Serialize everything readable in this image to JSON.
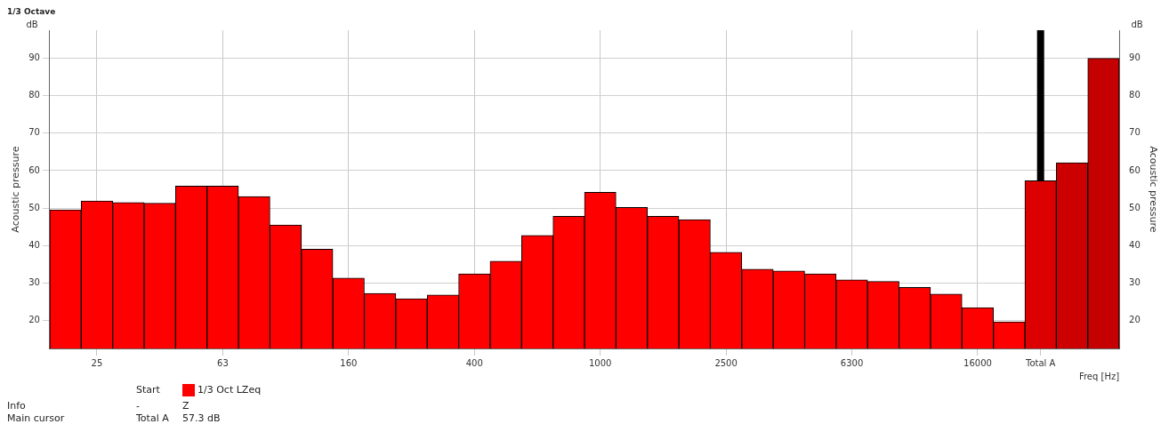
{
  "chart_data": {
    "type": "bar",
    "title": "1/3 Octave",
    "xlabel": "Freq [Hz]",
    "ylabel": "Acoustic pressure",
    "y2label": "Acoustic pressure",
    "categories": [
      null,
      "25",
      null,
      null,
      null,
      "63",
      null,
      null,
      null,
      "160",
      null,
      null,
      null,
      "400",
      null,
      null,
      null,
      "1000",
      null,
      null,
      null,
      "2500",
      null,
      null,
      null,
      "6300",
      null,
      null,
      null,
      "16000",
      null,
      "Total A",
      null,
      null
    ],
    "series": [
      {
        "name": "1/3 Oct LZeq",
        "color": "#ff0000",
        "values": [
          49.5,
          51.9,
          51.5,
          51.3,
          55.9,
          55.9,
          53.1,
          45.5,
          39.0,
          31.3,
          27.2,
          25.8,
          26.8,
          32.4,
          35.8,
          42.7,
          47.8,
          54.2,
          50.2,
          47.8,
          46.9,
          38.2,
          33.7,
          33.2,
          32.4,
          30.8,
          30.4,
          28.8,
          27.0,
          23.4,
          19.6,
          57.3,
          62.1,
          90.0
        ],
        "colors": [
          "#ff0000",
          "#ff0000",
          "#ff0000",
          "#ff0000",
          "#ff0000",
          "#ff0000",
          "#ff0000",
          "#ff0000",
          "#ff0000",
          "#ff0000",
          "#ff0000",
          "#ff0000",
          "#ff0000",
          "#ff0000",
          "#ff0000",
          "#ff0000",
          "#ff0000",
          "#ff0000",
          "#ff0000",
          "#ff0000",
          "#ff0000",
          "#ff0000",
          "#ff0000",
          "#ff0000",
          "#ff0000",
          "#ff0000",
          "#ff0000",
          "#ff0000",
          "#ff0000",
          "#ff0000",
          "#ff0000",
          "#dd0000",
          "#cc0000",
          "#c40000"
        ]
      }
    ],
    "ylim": [
      12.5,
      97.5
    ],
    "yticks": [
      20,
      30,
      40,
      50,
      60,
      70,
      80,
      90
    ],
    "y2lim": [
      12.5,
      97.5
    ],
    "y2ticks": [
      20,
      30,
      40,
      50,
      60,
      70,
      80,
      90
    ],
    "grid": true,
    "legend": "bottom left",
    "ref_lines": [
      {
        "axis": "x",
        "value": "Total A",
        "color": "#000000"
      }
    ],
    "annotations": [
      "dB",
      "dB",
      "Start",
      "Info",
      "-",
      "Z",
      "Main cursor",
      "Total A",
      "57.3 dB"
    ]
  }
}
